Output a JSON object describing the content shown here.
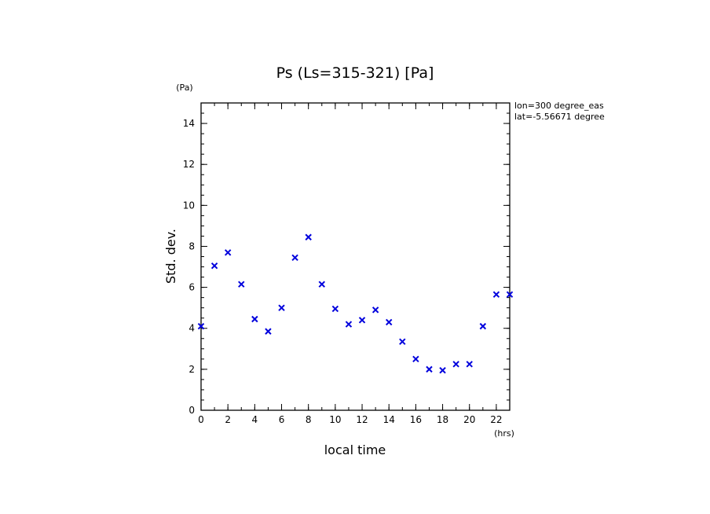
{
  "chart_data": {
    "type": "scatter",
    "title": "Ps (Ls=315-321) [Pa]",
    "xlabel": "local time",
    "ylabel": "Std. dev.",
    "x_unit": "(hrs)",
    "y_unit": "(Pa)",
    "xlim": [
      0,
      23
    ],
    "ylim": [
      0,
      15
    ],
    "x_ticks": [
      0,
      2,
      4,
      6,
      8,
      10,
      12,
      14,
      16,
      18,
      20,
      22
    ],
    "y_ticks": [
      0,
      2,
      4,
      6,
      8,
      10,
      12,
      14
    ],
    "marker": "x",
    "marker_color": "#0000dd",
    "grid": false,
    "annotations": [
      "lon=300 degree_eas",
      "lat=-5.56671 degree"
    ],
    "x": [
      0,
      1,
      2,
      3,
      4,
      5,
      6,
      7,
      8,
      9,
      10,
      11,
      12,
      13,
      14,
      15,
      16,
      17,
      18,
      19,
      20,
      21,
      22,
      23
    ],
    "values": [
      4.1,
      7.05,
      7.7,
      6.15,
      4.45,
      3.85,
      5.0,
      7.45,
      8.45,
      6.15,
      4.95,
      4.2,
      4.4,
      4.9,
      4.3,
      3.35,
      2.5,
      2.0,
      1.95,
      2.25,
      2.25,
      4.1,
      5.65,
      5.65
    ]
  }
}
